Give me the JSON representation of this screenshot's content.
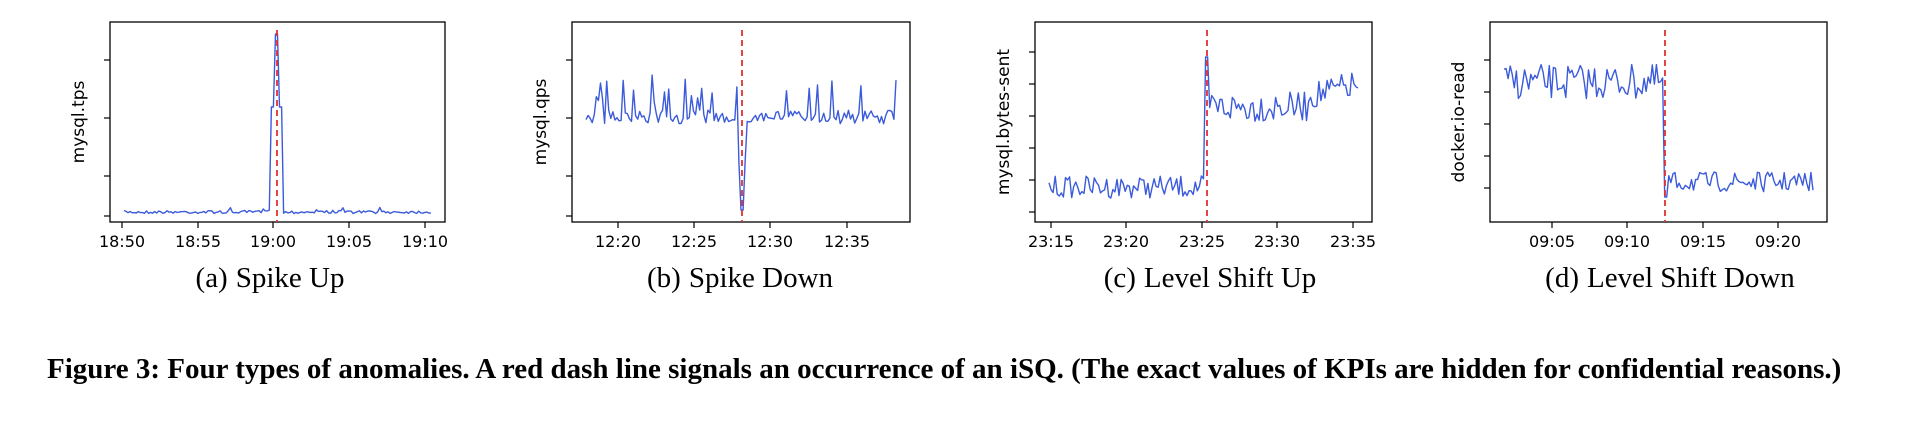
{
  "figure": {
    "caption_label": "Figure 3:",
    "caption_text": "Four types of anomalies.  A red dash line signals an occurrence of an iSQ. (The exact values of KPIs are hidden for confidential reasons.)"
  },
  "colors": {
    "series": "#3b5bdb",
    "marker": "#e03131",
    "axis": "#000000"
  },
  "chart_data": [
    {
      "type": "line",
      "panel_label": "(a)",
      "caption": "Spike Up",
      "ylabel": "mysql.tps",
      "xticks": [
        "18:50",
        "18:55",
        "19:00",
        "19:05",
        "19:10"
      ],
      "anomaly_at": "19:00",
      "pattern": "spike_up"
    },
    {
      "type": "line",
      "panel_label": "(b)",
      "caption": "Spike Down",
      "ylabel": "mysql.qps",
      "xticks": [
        "12:20",
        "12:25",
        "12:30",
        "12:35"
      ],
      "anomaly_at": "12:27",
      "pattern": "spike_down"
    },
    {
      "type": "line",
      "panel_label": "(c)",
      "caption": "Level Shift Up",
      "ylabel": "mysql.bytes-sent",
      "xticks": [
        "23:15",
        "23:20",
        "23:25",
        "23:30",
        "23:35"
      ],
      "anomaly_at": "23:24",
      "pattern": "level_shift_up"
    },
    {
      "type": "line",
      "panel_label": "(d)",
      "caption": "Level Shift Down",
      "ylabel": "docker.io-read",
      "xticks": [
        "09:05",
        "09:10",
        "09:15",
        "09:20"
      ],
      "anomaly_at": "09:12",
      "pattern": "level_shift_down"
    }
  ]
}
